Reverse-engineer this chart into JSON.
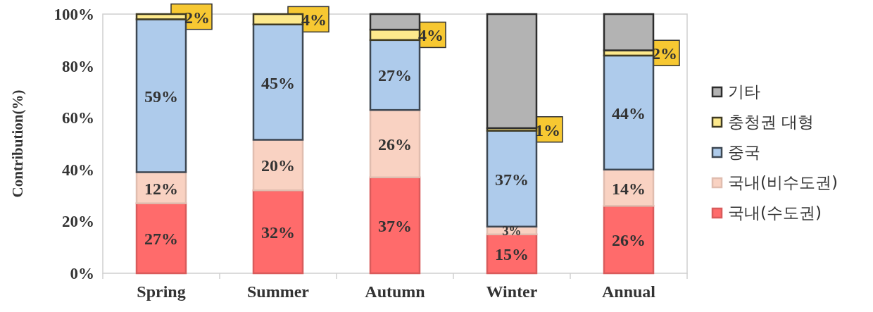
{
  "chart_data": {
    "type": "bar",
    "stacked": true,
    "ylabel": "Contribution(%)",
    "categories": [
      "Spring",
      "Summer",
      "Autumn",
      "Winter",
      "Annual"
    ],
    "series": [
      {
        "name": "국내(수도권)",
        "color": "#ff6b6b",
        "values": [
          27,
          32,
          37,
          15,
          26
        ],
        "value_labels": [
          "27%",
          "32%",
          "37%",
          "15%",
          "26%"
        ]
      },
      {
        "name": "국내(비수도권)",
        "color": "#f9d2c2",
        "values": [
          12,
          19.5,
          26,
          3,
          14
        ],
        "value_labels": [
          "12%",
          "20%",
          "26%",
          "3%",
          "14%"
        ]
      },
      {
        "name": "중국",
        "color": "#aecbeb",
        "values": [
          59,
          44.5,
          27,
          37,
          44
        ],
        "value_labels": [
          "59%",
          "45%",
          "27%",
          "37%",
          "44%"
        ]
      },
      {
        "name": "충청권 대형",
        "color": "#fde98c",
        "values": [
          2,
          4,
          4,
          1,
          2
        ],
        "value_labels": [
          "2%",
          "4%",
          "4%",
          "1%",
          "2%"
        ]
      },
      {
        "name": "기타",
        "color": "#b3b3b3",
        "values": [
          0,
          0,
          6,
          44,
          14
        ]
      }
    ],
    "ylim": [
      0,
      100
    ],
    "yticks": [
      {
        "value": 0,
        "label": "0%"
      },
      {
        "value": 20,
        "label": "20%"
      },
      {
        "value": 40,
        "label": "40%"
      },
      {
        "value": 60,
        "label": "60%"
      },
      {
        "value": 80,
        "label": "80%"
      },
      {
        "value": 100,
        "label": "100%"
      }
    ],
    "grid": false,
    "legend": "right"
  }
}
